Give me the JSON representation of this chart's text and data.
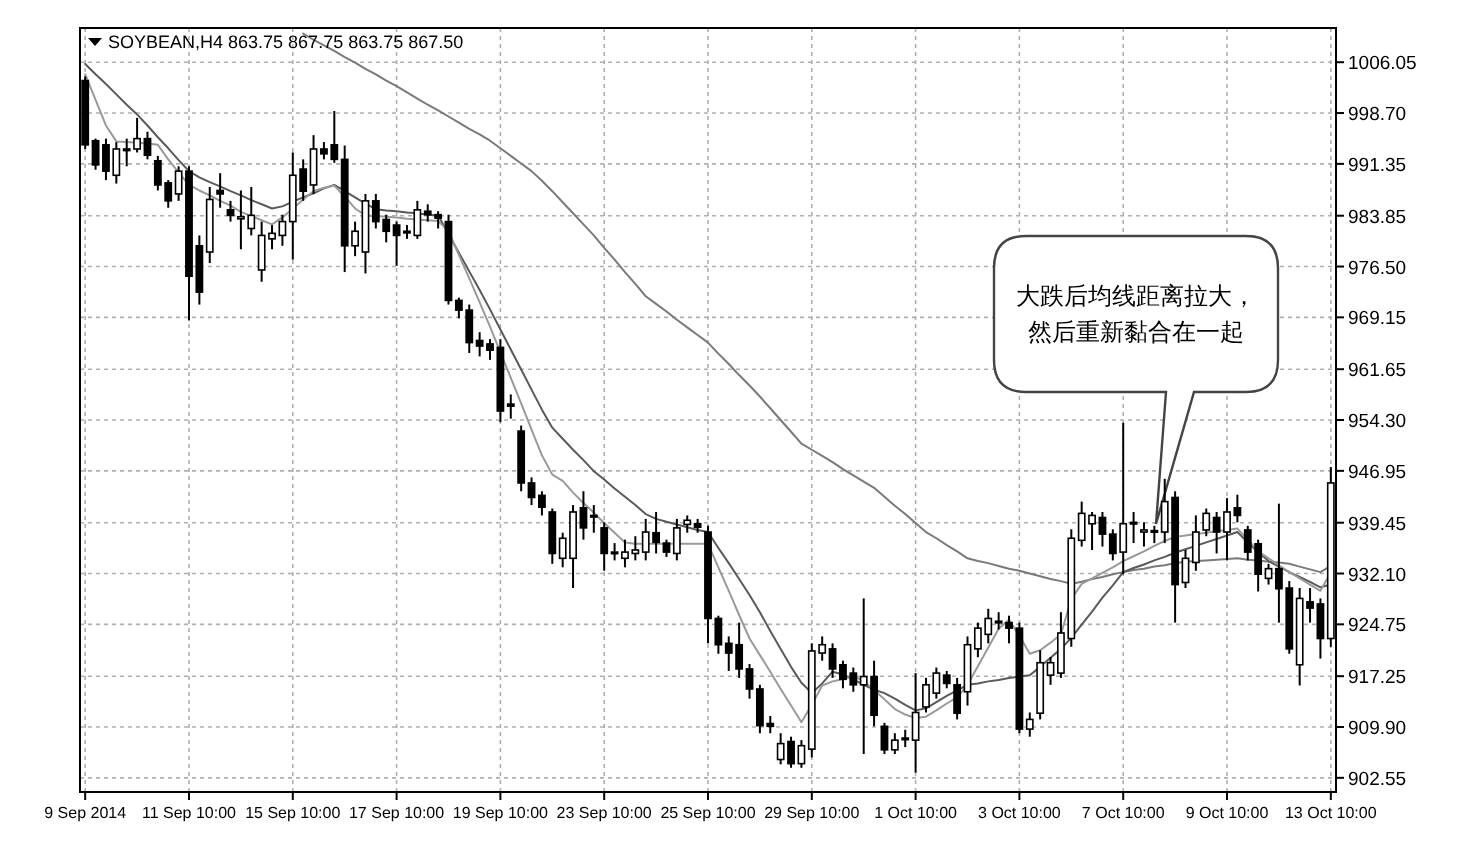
{
  "chart_data": {
    "type": "candlestick",
    "title": "SOYBEAN,H4 863.75 867.75 863.75 867.50",
    "categories": [
      "9 Sep 2014",
      null,
      null,
      null,
      null,
      null,
      null,
      null,
      null,
      null,
      "11 Sep 10:00",
      null,
      null,
      null,
      null,
      null,
      null,
      null,
      null,
      null,
      "15 Sep 10:00",
      null,
      null,
      null,
      null,
      null,
      null,
      null,
      null,
      null,
      "17 Sep 10:00",
      null,
      null,
      null,
      null,
      null,
      null,
      null,
      null,
      null,
      "19 Sep 10:00",
      null,
      null,
      null,
      null,
      null,
      null,
      null,
      null,
      null,
      "23 Sep 10:00",
      null,
      null,
      null,
      null,
      null,
      null,
      null,
      null,
      null,
      "25 Sep 10:00",
      null,
      null,
      null,
      null,
      null,
      null,
      null,
      null,
      null,
      "29 Sep 10:00",
      null,
      null,
      null,
      null,
      null,
      null,
      null,
      null,
      null,
      "1 Oct 10:00",
      null,
      null,
      null,
      null,
      null,
      null,
      null,
      null,
      null,
      "3 Oct 10:00",
      null,
      null,
      null,
      null,
      null,
      null,
      null,
      null,
      null,
      "7 Oct 10:00",
      null,
      null,
      null,
      null,
      null,
      null,
      null,
      null,
      null,
      "9 Oct 10:00",
      null,
      null,
      null,
      null,
      null,
      null,
      null,
      null,
      null,
      "13 Oct 10:00"
    ],
    "ohlc": [
      [
        1003.4,
        1004,
        993.5,
        994.1
      ],
      [
        994.7,
        995,
        990.5,
        991.2
      ],
      [
        994.1,
        995,
        989,
        990.3
      ],
      [
        989.7,
        994.5,
        988.5,
        993.5
      ],
      [
        993.3,
        995,
        991,
        993.5
      ],
      [
        993.5,
        998,
        993,
        995
      ],
      [
        995,
        996,
        992,
        992.6
      ],
      [
        991.8,
        992.5,
        987.5,
        988.3
      ],
      [
        988.6,
        989,
        985,
        986
      ],
      [
        987,
        991,
        986,
        990.3
      ],
      [
        990.3,
        991,
        968.7,
        975.1
      ],
      [
        979.5,
        981,
        971,
        972.8
      ],
      [
        978.6,
        988,
        977,
        986.2
      ],
      [
        987.5,
        990,
        985,
        987
      ],
      [
        984.7,
        986,
        983,
        983.9
      ],
      [
        983.4,
        987.5,
        979,
        983.7
      ],
      [
        982,
        988,
        981,
        983.9
      ],
      [
        976,
        983,
        974.3,
        981
      ],
      [
        980.5,
        982.5,
        979,
        981.3
      ],
      [
        981,
        984,
        979.5,
        983
      ],
      [
        983,
        993,
        977.5,
        989.7
      ],
      [
        990.6,
        992,
        986,
        987.4
      ],
      [
        988.3,
        995.5,
        987,
        993.5
      ],
      [
        993.5,
        994.5,
        992,
        992.8
      ],
      [
        994.1,
        999,
        991.5,
        992
      ],
      [
        992,
        994,
        975.7,
        979.5
      ],
      [
        979.5,
        983,
        978,
        981.6
      ],
      [
        978.6,
        987,
        975.5,
        986
      ],
      [
        986,
        987,
        982,
        983
      ],
      [
        983.3,
        984,
        980,
        981.6
      ],
      [
        982.5,
        983,
        976.6,
        981
      ],
      [
        981.6,
        982.5,
        980.5,
        981.4
      ],
      [
        981,
        986,
        980.5,
        984.7
      ],
      [
        984.5,
        985.5,
        983,
        984
      ],
      [
        984,
        984.5,
        982,
        983.5
      ],
      [
        983,
        984,
        971,
        971.6
      ],
      [
        971.6,
        972,
        969,
        970.2
      ],
      [
        970.2,
        971,
        964,
        965.5
      ],
      [
        965.8,
        967,
        963.5,
        965
      ],
      [
        965.3,
        966,
        963,
        964.4
      ],
      [
        964.8,
        966,
        954,
        955.6
      ],
      [
        956.6,
        958,
        954.5,
        956.3
      ],
      [
        952.7,
        953.5,
        944,
        945.2
      ],
      [
        945.2,
        946,
        942,
        943.1
      ],
      [
        943.4,
        944,
        940.5,
        941.7
      ],
      [
        941,
        941.5,
        933.5,
        935
      ],
      [
        934.3,
        938,
        933,
        937.2
      ],
      [
        934.3,
        942,
        930,
        941
      ],
      [
        941.6,
        944,
        937,
        938.7
      ],
      [
        940.5,
        942,
        938,
        940.5
      ],
      [
        938.7,
        939.5,
        932.5,
        935
      ],
      [
        935.2,
        936.5,
        934,
        935
      ],
      [
        934.3,
        937,
        933,
        935.2
      ],
      [
        935,
        937.5,
        934,
        935.5
      ],
      [
        935.2,
        940,
        934,
        938.1
      ],
      [
        938,
        941,
        935,
        936.6
      ],
      [
        936.5,
        937,
        934.5,
        935.2
      ],
      [
        935,
        940,
        934,
        938.7
      ],
      [
        939.2,
        940.5,
        938,
        939.8
      ],
      [
        939.3,
        940,
        938,
        938.8
      ],
      [
        938.1,
        939,
        922,
        925.6
      ],
      [
        925.6,
        926,
        920.5,
        921.8
      ],
      [
        922,
        923,
        918,
        920.6
      ],
      [
        921.8,
        925,
        917,
        918.3
      ],
      [
        918.3,
        919,
        914,
        915.4
      ],
      [
        915.4,
        916,
        909,
        910.1
      ],
      [
        910.4,
        911.5,
        909,
        910
      ],
      [
        905.2,
        909,
        904.5,
        907.5
      ],
      [
        907.8,
        908.5,
        904,
        904.6
      ],
      [
        904.6,
        908,
        904,
        907.2
      ],
      [
        906.7,
        922,
        905.5,
        920.9
      ],
      [
        920.6,
        923,
        919.5,
        921.8
      ],
      [
        921.2,
        922,
        917,
        918.3
      ],
      [
        918.9,
        919.5,
        915.5,
        916.8
      ],
      [
        917.7,
        918.5,
        915,
        916
      ],
      [
        916,
        928.5,
        906,
        917.2
      ],
      [
        917.2,
        919.5,
        910,
        911.6
      ],
      [
        910,
        910.5,
        906,
        906.6
      ],
      [
        906.6,
        909,
        906,
        908
      ],
      [
        908.1,
        909.5,
        907,
        908.3
      ],
      [
        908,
        917.7,
        903.3,
        912
      ],
      [
        912.8,
        917,
        912,
        916
      ],
      [
        914.8,
        918.5,
        914,
        917.7
      ],
      [
        917.4,
        918,
        915.5,
        916.2
      ],
      [
        916,
        917,
        911,
        911.9
      ],
      [
        915,
        923,
        913,
        921.8
      ],
      [
        921.2,
        925,
        920,
        924.2
      ],
      [
        923.3,
        927,
        922,
        925.6
      ],
      [
        925,
        926.5,
        924,
        925.2
      ],
      [
        925,
        926,
        922,
        924.2
      ],
      [
        924.2,
        925,
        909,
        909.6
      ],
      [
        909.6,
        912,
        908.5,
        911
      ],
      [
        911.9,
        921,
        911,
        919.2
      ],
      [
        917.4,
        920,
        916,
        919.2
      ],
      [
        917.7,
        926.5,
        917,
        923.5
      ],
      [
        922.7,
        938.5,
        921.5,
        937.2
      ],
      [
        936.9,
        942.5,
        936,
        940.8
      ],
      [
        939.3,
        941,
        935.5,
        940.5
      ],
      [
        940.2,
        941,
        936,
        937.8
      ],
      [
        937.8,
        938.5,
        934,
        935
      ],
      [
        935.2,
        953.9,
        932,
        939.3
      ],
      [
        939.5,
        941,
        936.5,
        939.3
      ],
      [
        938.1,
        939.5,
        936,
        938.4
      ],
      [
        938.3,
        939,
        936.5,
        938.1
      ],
      [
        938.1,
        945.8,
        936.5,
        942.5
      ],
      [
        943.1,
        944,
        925,
        930.5
      ],
      [
        930.8,
        935.5,
        930,
        934.3
      ],
      [
        933.7,
        940.5,
        932.5,
        938.1
      ],
      [
        938.4,
        941.5,
        937.5,
        940.8
      ],
      [
        940.2,
        941,
        935,
        938.1
      ],
      [
        938.1,
        943,
        934,
        941
      ],
      [
        941.6,
        943.5,
        939.5,
        940.5
      ],
      [
        938.4,
        939,
        934,
        935.2
      ],
      [
        936.4,
        937,
        929.5,
        932
      ],
      [
        931.4,
        933.5,
        930.5,
        932.8
      ],
      [
        932.8,
        942.2,
        925,
        929.9
      ],
      [
        930,
        931,
        920.5,
        921.2
      ],
      [
        918.9,
        930,
        915.9,
        928.5
      ],
      [
        928,
        930,
        925,
        927.1
      ],
      [
        927.7,
        928.5,
        919.8,
        922.7
      ],
      [
        922.7,
        947.5,
        921.5,
        945.2
      ]
    ],
    "series": [
      {
        "type": "line",
        "color": "#7a7a7a",
        "values": [
          null,
          null,
          null,
          null,
          null,
          null,
          null,
          null,
          null,
          null,
          null,
          null,
          null,
          null,
          null,
          null,
          null,
          null,
          null,
          null,
          null,
          1010.2,
          1009.3,
          1008.5,
          1007.7,
          1006.8,
          1006.0,
          1005.1,
          1004.3,
          1003.4,
          1002.6,
          1001.7,
          1000.8,
          999.9,
          999.1,
          998.2,
          997.3,
          996.4,
          995.6,
          994.7,
          993.6,
          992.5,
          991.4,
          990.3,
          988.9,
          987.4,
          985.8,
          984.2,
          982.6,
          981.0,
          979.2,
          977.5,
          975.7,
          974.0,
          972.2,
          971.1,
          970.0,
          968.8,
          967.7,
          966.6,
          965.5,
          963.9,
          962.4,
          960.8,
          959.3,
          957.7,
          956.0,
          954.3,
          952.6,
          950.9,
          950.0,
          949.1,
          948.2,
          947.2,
          946.3,
          945.4,
          944.5,
          943.2,
          941.9,
          940.7,
          939.4,
          938.1,
          937.2,
          936.2,
          935.3,
          934.3,
          933.9,
          933.6,
          933.2,
          932.8,
          932.5,
          932.1,
          931.7,
          931.3,
          931.0,
          930.6,
          930.9,
          931.3,
          931.6,
          932.0,
          932.3,
          932.6,
          932.8,
          933.1,
          933.3,
          933.6,
          933.8,
          933.9,
          934.0,
          934.1,
          934.2,
          934.3,
          934.1,
          934.0,
          933.8,
          933.7,
          933.5,
          933.1,
          932.7,
          932.3,
          933.2
        ]
      },
      {
        "type": "line",
        "color": "#5a5a5a",
        "values": [
          1005.8,
          1004.3,
          1002.9,
          1001.4,
          999.9,
          998.5,
          996.9,
          995.2,
          993.6,
          991.9,
          990.3,
          989.4,
          988.7,
          988.1,
          987.4,
          986.8,
          986.1,
          985.5,
          984.9,
          985.2,
          985.9,
          986.5,
          987.1,
          987.8,
          988.3,
          987.4,
          986.5,
          985.6,
          984.8,
          984.6,
          984.5,
          984.3,
          984.2,
          984.0,
          983.9,
          981.2,
          978.5,
          975.8,
          973.1,
          970.3,
          967.4,
          964.5,
          961.6,
          958.7,
          955.8,
          953.2,
          951.6,
          950.0,
          948.5,
          946.9,
          945.7,
          944.4,
          943.2,
          942.0,
          940.7,
          940.0,
          939.6,
          939.2,
          938.8,
          938.4,
          938.1,
          935.8,
          933.6,
          931.3,
          929.0,
          926.5,
          923.8,
          921.2,
          918.6,
          916.3,
          914.8,
          916.2,
          917.9,
          917.5,
          916.8,
          916.0,
          915.3,
          914.8,
          914.0,
          913.1,
          912.3,
          912.6,
          913.5,
          914.4,
          915.2,
          916.0,
          916.2,
          916.5,
          916.7,
          917.0,
          917.2,
          917.4,
          918.6,
          919.9,
          921.2,
          922.8,
          924.7,
          926.6,
          928.6,
          930.4,
          932.3,
          932.9,
          933.4,
          934.0,
          934.5,
          935.1,
          935.6,
          936.1,
          936.6,
          937.1,
          937.6,
          938.1,
          936.6,
          935.2,
          933.9,
          933.1,
          932.3,
          931.6,
          930.9,
          930.1,
          930.5
        ]
      },
      {
        "type": "line",
        "color": "#9a9a9a",
        "values": [
          1004.3,
          1000.6,
          996.9,
          994.6,
          994.5,
          994.4,
          994.3,
          994.1,
          992.0,
          990.1,
          988.3,
          987.5,
          986.8,
          986.0,
          985.3,
          984.4,
          983.8,
          983.2,
          982.6,
          983.6,
          984.9,
          986.2,
          987.4,
          987.9,
          988.2,
          986.6,
          984.9,
          983.9,
          983.8,
          983.7,
          983.6,
          983.4,
          983.3,
          983.2,
          983.1,
          981.6,
          978.2,
          974.8,
          971.3,
          967.8,
          964.1,
          960.4,
          956.7,
          952.9,
          949.2,
          946.4,
          945.5,
          943.8,
          942.3,
          940.9,
          939.4,
          938.0,
          936.6,
          936.4,
          936.4,
          936.4,
          936.4,
          936.4,
          936.4,
          936.4,
          936.4,
          933.0,
          929.6,
          926.1,
          922.7,
          920.3,
          917.9,
          915.4,
          913.0,
          910.6,
          913.1,
          915.9,
          916.5,
          916.8,
          917.2,
          916.6,
          915.2,
          913.9,
          912.5,
          911.7,
          911.2,
          911.4,
          912.3,
          913.3,
          914.2,
          916.0,
          918.7,
          921.4,
          924.1,
          925.4,
          923.1,
          920.5,
          921.0,
          922.1,
          923.3,
          928.4,
          930.6,
          931.4,
          932.2,
          933.0,
          933.9,
          934.6,
          935.3,
          936.1,
          936.8,
          937.4,
          937.6,
          937.8,
          938.0,
          938.2,
          938.4,
          938.6,
          937.0,
          935.3,
          934.3,
          933.3,
          932.3,
          931.4,
          930.5,
          929.6,
          932.3
        ]
      }
    ],
    "ylim": [
      900.5,
      1011
    ],
    "yticks": [
      1006.05,
      {
        "value": 998.7,
        "label": "998.70"
      },
      991.35,
      983.85,
      {
        "value": 976.5,
        "label": "976.50"
      },
      969.15,
      961.65,
      {
        "value": 954.3,
        "label": "954.30"
      },
      946.95,
      939.45,
      {
        "value": 932.1,
        "label": "932.10"
      },
      924.75,
      917.25,
      {
        "value": 909.9,
        "label": "909.90"
      },
      902.55
    ],
    "grid": true,
    "annotations": [
      "大跌后均线距离拉大，然后重新黏合在一起"
    ]
  }
}
